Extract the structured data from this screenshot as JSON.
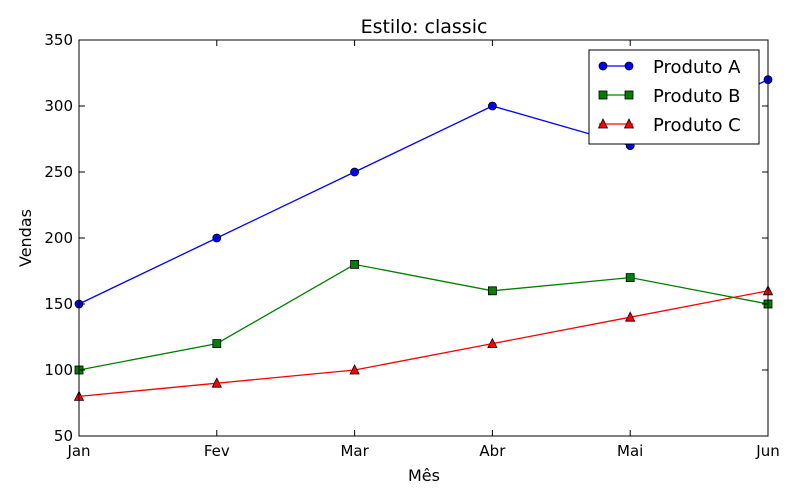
{
  "chart_data": {
    "type": "line",
    "title": "Estilo: classic",
    "xlabel": "Mês",
    "ylabel": "Vendas",
    "categories": [
      "Jan",
      "Fev",
      "Mar",
      "Abr",
      "Mai",
      "Jun"
    ],
    "ylim": [
      50,
      350
    ],
    "yticks": [
      50,
      100,
      150,
      200,
      250,
      300,
      350
    ],
    "grid": false,
    "legend_position": "top-right",
    "series": [
      {
        "name": "Produto A",
        "values": [
          150,
          200,
          250,
          300,
          270,
          320
        ],
        "color": "#0000ff",
        "marker": "circle"
      },
      {
        "name": "Produto B",
        "values": [
          100,
          120,
          180,
          160,
          170,
          150
        ],
        "color": "#008000",
        "marker": "square"
      },
      {
        "name": "Produto C",
        "values": [
          80,
          90,
          100,
          120,
          140,
          160
        ],
        "color": "#ff0000",
        "marker": "triangle"
      }
    ]
  }
}
